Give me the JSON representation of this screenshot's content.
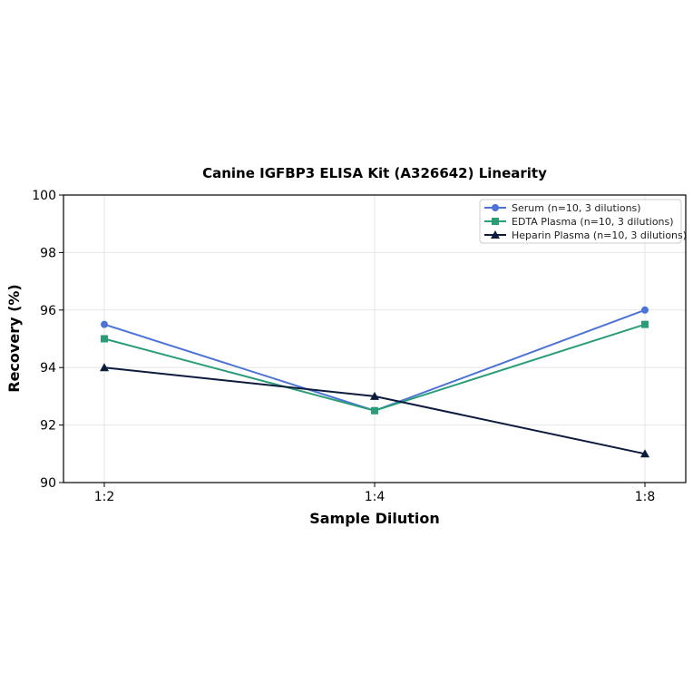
{
  "chart_data": {
    "type": "line",
    "title": "Canine IGFBP3 ELISA Kit (A326642) Linearity",
    "xlabel": "Sample Dilution",
    "ylabel": "Recovery (%)",
    "categories": [
      "1:2",
      "1:4",
      "1:8"
    ],
    "ylim": [
      90,
      100
    ],
    "yticks": [
      90,
      92,
      94,
      96,
      98,
      100
    ],
    "grid": true,
    "legend_position": "top-right",
    "series": [
      {
        "name": "Serum (n=10, 3 dilutions)",
        "values": [
          95.5,
          92.5,
          96.0
        ],
        "color": "#4e73d6",
        "marker": "circle"
      },
      {
        "name": "EDTA Plasma (n=10, 3 dilutions)",
        "values": [
          95.0,
          92.5,
          95.5
        ],
        "color": "#2a9d78",
        "marker": "square"
      },
      {
        "name": "Heparin Plasma (n=10, 3 dilutions)",
        "values": [
          94.0,
          93.0,
          91.0
        ],
        "color": "#0d1b3e",
        "marker": "triangle"
      }
    ]
  }
}
